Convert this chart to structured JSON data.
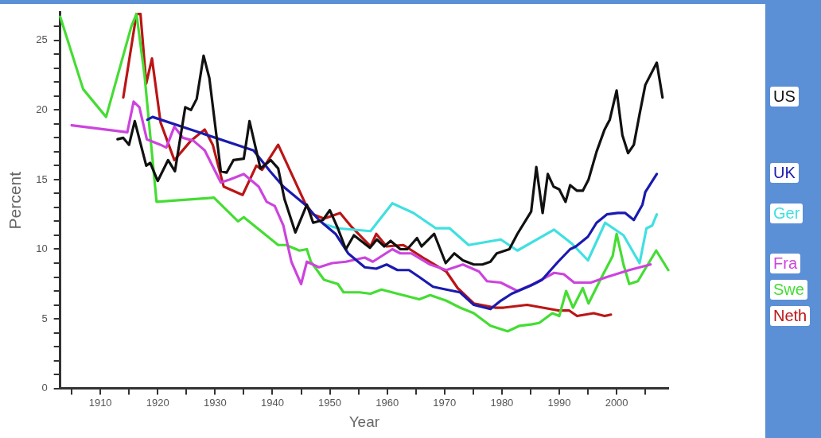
{
  "chart_data": {
    "type": "line",
    "xlabel": "Year",
    "ylabel": "Percent",
    "xlim": [
      1903,
      2009
    ],
    "ylim": [
      0,
      27
    ],
    "xticks": [
      {
        "value": 1905,
        "label": null
      },
      1910,
      {
        "value": 1915,
        "label": null
      },
      1920,
      {
        "value": 1925,
        "label": null
      },
      1930,
      {
        "value": 1935,
        "label": null
      },
      1940,
      {
        "value": 1945,
        "label": null
      },
      1950,
      {
        "value": 1955,
        "label": null
      },
      1960,
      {
        "value": 1965,
        "label": null
      },
      1970,
      {
        "value": 1975,
        "label": null
      },
      1980,
      {
        "value": 1985,
        "label": null
      },
      1990,
      {
        "value": 1995,
        "label": null
      },
      2000,
      {
        "value": 2005,
        "label": null
      }
    ],
    "yticks": [
      0,
      {
        "value": 1,
        "label": null
      },
      {
        "value": 2,
        "label": null
      },
      {
        "value": 3,
        "label": null
      },
      {
        "value": 4,
        "label": null
      },
      5,
      {
        "value": 6,
        "label": null
      },
      {
        "value": 7,
        "label": null
      },
      {
        "value": 8,
        "label": null
      },
      {
        "value": 9,
        "label": null
      },
      10,
      {
        "value": 11,
        "label": null
      },
      {
        "value": 12,
        "label": null
      },
      {
        "value": 13,
        "label": null
      },
      {
        "value": 14,
        "label": null
      },
      15,
      {
        "value": 16,
        "label": null
      },
      {
        "value": 17,
        "label": null
      },
      {
        "value": 18,
        "label": null
      },
      {
        "value": 19,
        "label": null
      },
      20,
      {
        "value": 21,
        "label": null
      },
      {
        "value": 22,
        "label": null
      },
      {
        "value": 23,
        "label": null
      },
      {
        "value": 24,
        "label": null
      },
      25,
      {
        "value": 26,
        "label": null
      }
    ],
    "grid": false,
    "legend": "right",
    "marker": "none",
    "series": [
      {
        "name": "US",
        "color": "#111111",
        "x": [
          1913,
          1914,
          1915,
          1916,
          1918,
          1918.7,
          1920,
          1921.8,
          1923,
          1924.8,
          1925.8,
          1926.8,
          1928,
          1929,
          1931,
          1932,
          1933.2,
          1935,
          1936,
          1937.9,
          1939.7,
          1941,
          1942.1,
          1944,
          1946,
          1947.1,
          1948.8,
          1950,
          1951.4,
          1952.8,
          1954.2,
          1957,
          1958.2,
          1959.5,
          1960.6,
          1962.3,
          1963.5,
          1965.2,
          1966,
          1968.2,
          1970.2,
          1971.7,
          1973.2,
          1975.1,
          1976.6,
          1978,
          1979.1,
          1981.3,
          1982.7,
          1985.1,
          1986,
          1987.1,
          1988,
          1989,
          1990,
          1991.1,
          1991.9,
          1993.1,
          1994.1,
          1995.1,
          1996.5,
          1997.9,
          1998.8,
          2000,
          2001,
          2002,
          2003,
          2004,
          2005,
          2007,
          2008
        ],
        "values": [
          17.9,
          18,
          17.5,
          19.2,
          16,
          16.2,
          14.9,
          16.4,
          15.6,
          20.2,
          20,
          20.8,
          23.9,
          22.3,
          15.6,
          15.5,
          16.4,
          16.5,
          19.2,
          15.8,
          16.4,
          15.8,
          13.6,
          11.2,
          13.2,
          11.9,
          12.1,
          12.8,
          11.5,
          10,
          11,
          10.1,
          10.7,
          10.2,
          10.6,
          10,
          10,
          10.8,
          10.2,
          11.1,
          9,
          9.7,
          9.2,
          8.9,
          8.9,
          9.1,
          9.7,
          10,
          11.1,
          12.7,
          15.9,
          12.6,
          15.4,
          14.5,
          14.3,
          13.4,
          14.6,
          14.2,
          14.2,
          15,
          17,
          18.6,
          19.3,
          21.4,
          18.2,
          16.9,
          17.5,
          19.7,
          21.8,
          23.4,
          20.9
        ]
      },
      {
        "name": "UK",
        "color": "#1a1ab0",
        "x": [
          1918.2,
          1919.1,
          1936.7,
          1939.6,
          1941.9,
          1945.7,
          1948.1,
          1951,
          1953.2,
          1956.1,
          1958.1,
          1959.9,
          1961.8,
          1963.8,
          1965.6,
          1968,
          1970.3,
          1972.7,
          1975.1,
          1978,
          1979.8,
          1981.7,
          1985.1,
          1987,
          1989.8,
          1991.9,
          1992.9,
          1995,
          1996.5,
          1998.3,
          2000.2,
          2001.5,
          2003,
          2004.5,
          2005,
          2007
        ],
        "values": [
          19.3,
          19.5,
          17.1,
          15.6,
          14.5,
          13.2,
          12.1,
          11.1,
          9.7,
          8.7,
          8.6,
          8.9,
          8.5,
          8.5,
          8,
          7.3,
          7.1,
          6.9,
          6,
          5.7,
          6.3,
          6.8,
          7.4,
          7.8,
          9.1,
          10,
          10.2,
          10.9,
          11.9,
          12.5,
          12.6,
          12.6,
          12.1,
          13.2,
          14.1,
          15.4
        ]
      },
      {
        "name": "Ger",
        "color": "#40e0e0",
        "x": [
          1949,
          1951.4,
          1957.1,
          1960.9,
          1964.6,
          1968.5,
          1970.9,
          1974.2,
          1979.8,
          1982.7,
          1989.1,
          1992.2,
          1995,
          1998,
          2001.2,
          2004,
          2005.2,
          2006.2,
          2007
        ],
        "values": [
          11.8,
          11.5,
          11.3,
          13.3,
          12.6,
          11.5,
          11.5,
          10.3,
          10.7,
          9.9,
          11.4,
          10.4,
          9.2,
          11.9,
          11,
          9,
          11.5,
          11.7,
          12.5
        ]
      },
      {
        "name": "Fra",
        "color": "#cc44dd",
        "x": [
          1905,
          1914.7,
          1915.8,
          1916.8,
          1918.1,
          1920.5,
          1921.5,
          1922.9,
          1924.4,
          1926.2,
          1928.2,
          1931,
          1932.5,
          1935,
          1937.6,
          1939,
          1940.4,
          1941.9,
          1943.3,
          1945,
          1946,
          1948.1,
          1950.4,
          1952.8,
          1956.1,
          1957.5,
          1960.9,
          1962.3,
          1964.2,
          1967.5,
          1970.3,
          1973.2,
          1976,
          1977.4,
          1979.8,
          1982.7,
          1985.5,
          1989.1,
          1990.8,
          1992.6,
          1995.5,
          1998.3,
          2002.2,
          2005.9
        ],
        "values": [
          18.9,
          18.4,
          20.6,
          20.2,
          17.9,
          17.5,
          17.3,
          18.8,
          18,
          17.8,
          17.1,
          14.8,
          15,
          15.4,
          14.5,
          13.4,
          13.1,
          11.7,
          9.1,
          7.5,
          9.1,
          8.7,
          9,
          9.1,
          9.4,
          9.1,
          10,
          9.7,
          9.7,
          8.9,
          8.5,
          8.9,
          8.4,
          7.7,
          7.6,
          7,
          7.5,
          8.3,
          8.2,
          7.6,
          7.6,
          8,
          8.5,
          8.9
        ]
      },
      {
        "name": "Swe",
        "color": "#44dd33",
        "x": [
          1903,
          1907,
          1911,
          1915.4,
          1916.3,
          1917.7,
          1919.8,
          1929.8,
          1934,
          1935,
          1941,
          1942.4,
          1944.7,
          1946,
          1946.7,
          1949,
          1951.4,
          1952.4,
          1955.2,
          1957.1,
          1959,
          1961.8,
          1965.6,
          1967.5,
          1970.3,
          1972.7,
          1975.1,
          1978,
          1981,
          1983.1,
          1985.1,
          1986.5,
          1988.8,
          1990,
          1991.2,
          1992.4,
          1994.1,
          1995.1,
          1997.4,
          1999.3,
          2000,
          2001.2,
          2002.2,
          2003.7,
          2005,
          2006.9,
          2009
        ],
        "values": [
          26.7,
          21.5,
          19.5,
          26,
          26.9,
          22.5,
          13.4,
          13.7,
          12,
          12.3,
          10.3,
          10.3,
          9.9,
          10,
          9.1,
          7.8,
          7.5,
          6.9,
          6.9,
          6.8,
          7.1,
          6.8,
          6.4,
          6.7,
          6.3,
          5.8,
          5.4,
          4.5,
          4.1,
          4.5,
          4.6,
          4.7,
          5.4,
          5.2,
          7,
          5.8,
          7.2,
          6.1,
          8,
          9.5,
          11.1,
          8.9,
          7.5,
          7.7,
          8.6,
          9.9,
          8.5
        ]
      },
      {
        "name": "Neth",
        "color": "#bb1515",
        "x": [
          1914,
          1916.3,
          1917,
          1918,
          1919,
          1920.5,
          1922.9,
          1925.8,
          1928.2,
          1929.6,
          1931.5,
          1934.8,
          1937.2,
          1938.2,
          1941,
          1945.7,
          1947.1,
          1949,
          1951.8,
          1953.8,
          1957.1,
          1958.1,
          1959.9,
          1962.8,
          1966.6,
          1970.3,
          1972.3,
          1975.1,
          1978.8,
          1980.3,
          1984.4,
          1989.8,
          1991.7,
          1993.1,
          1996,
          1997.9,
          1999
        ],
        "values": [
          20.9,
          26.9,
          26.9,
          21.9,
          23.7,
          19.1,
          16.4,
          17.8,
          18.6,
          17.5,
          14.5,
          13.9,
          16,
          15.7,
          17.5,
          13.3,
          12.5,
          12.2,
          12.6,
          11.6,
          10.2,
          11.1,
          10.2,
          10.3,
          9.3,
          8.4,
          7.2,
          6.1,
          5.8,
          5.8,
          6,
          5.6,
          5.6,
          5.2,
          5.4,
          5.2,
          5.3
        ]
      }
    ]
  }
}
